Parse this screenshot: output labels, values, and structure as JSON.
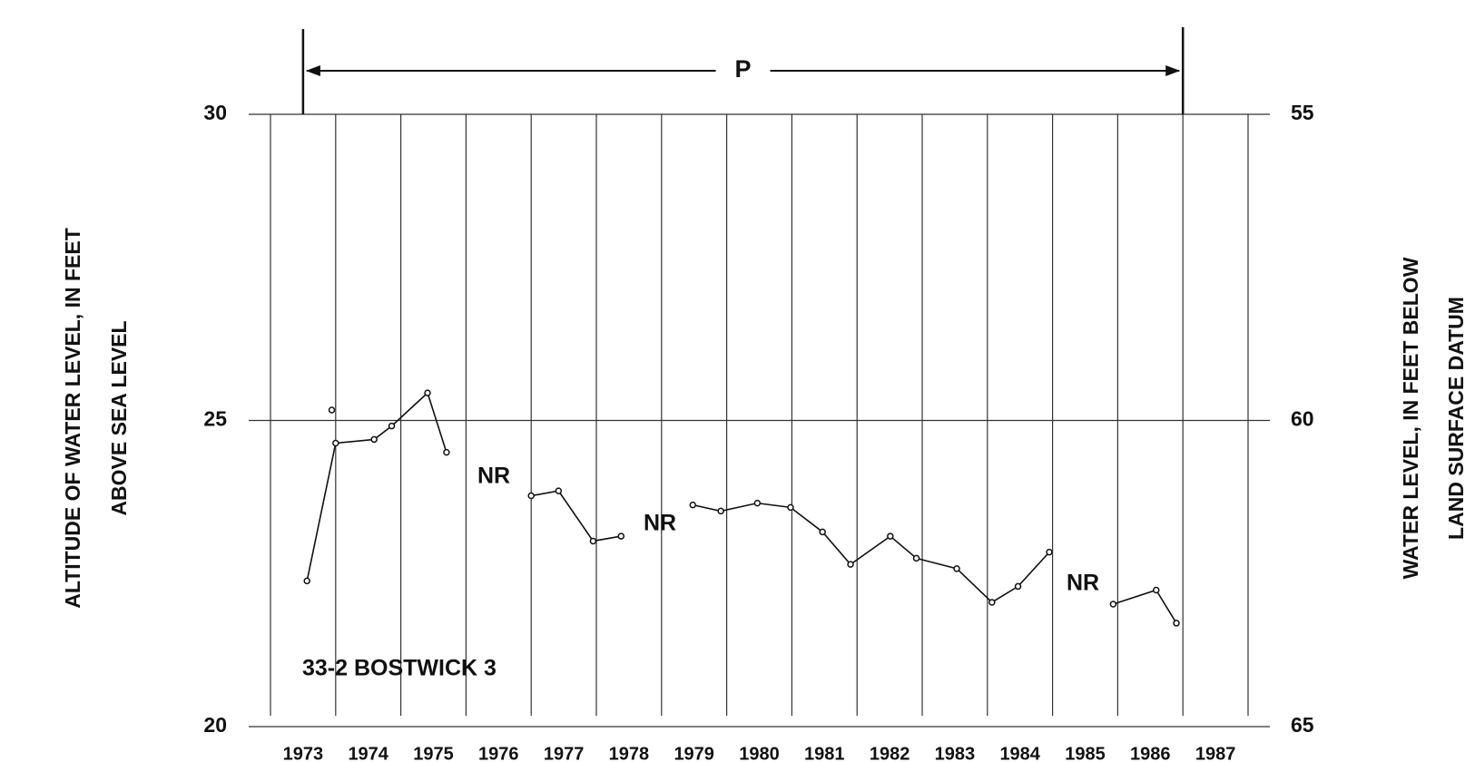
{
  "chart_data": {
    "type": "line",
    "ylabel": [
      "ALTITUDE OF WATER LEVEL, IN FEET",
      "ABOVE SEA LEVEL"
    ],
    "y2label": [
      "WATER LEVEL, IN FEET BELOW",
      "LAND SURFACE DATUM"
    ],
    "xlim": [
      1973,
      1988
    ],
    "xticks": [
      1973,
      1974,
      1975,
      1976,
      1977,
      1978,
      1979,
      1980,
      1981,
      1982,
      1983,
      1984,
      1985,
      1986,
      1987
    ],
    "ylim": [
      20,
      30
    ],
    "yticks": [
      20,
      25,
      30
    ],
    "y2lim": [
      65,
      55
    ],
    "y2ticks": [
      55,
      60,
      65
    ],
    "grid": true,
    "color": "#111111",
    "series": [
      {
        "x": [
          1973.56,
          1974.0,
          1974.59,
          1974.86,
          1975.41,
          1975.7
        ],
        "values": [
          22.38,
          24.63,
          24.69,
          24.91,
          25.45,
          24.48
        ]
      },
      {
        "x": [
          1973.94
        ],
        "values": [
          25.17
        ]
      },
      {
        "x": [
          1977.0,
          1977.42,
          1977.95,
          1978.38
        ],
        "values": [
          23.77,
          23.85,
          23.03,
          23.11
        ]
      },
      {
        "x": [
          1979.48,
          1979.91,
          1980.47,
          1980.98,
          1981.47,
          1981.9,
          1982.51,
          1982.91,
          1983.53,
          1984.07,
          1984.47,
          1984.95
        ],
        "values": [
          23.62,
          23.52,
          23.65,
          23.58,
          23.18,
          22.65,
          23.11,
          22.75,
          22.58,
          22.03,
          22.29,
          22.85
        ]
      },
      {
        "x": [
          1985.93,
          1986.59,
          1986.9
        ],
        "values": [
          22.0,
          22.23,
          21.69
        ]
      }
    ],
    "period": {
      "label": "P",
      "x": [
        1973.5,
        1987.0
      ]
    },
    "annotations": [
      "NR",
      "NR",
      "NR",
      "33-2 BOSTWICK 3"
    ]
  }
}
